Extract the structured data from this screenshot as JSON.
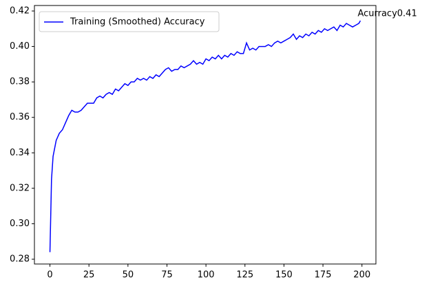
{
  "chart_data": {
    "type": "line",
    "x": [
      0,
      1,
      2,
      4,
      6,
      8,
      10,
      12,
      14,
      16,
      18,
      20,
      22,
      24,
      26,
      28,
      30,
      32,
      34,
      36,
      38,
      40,
      42,
      44,
      46,
      48,
      50,
      52,
      54,
      56,
      58,
      60,
      62,
      64,
      66,
      68,
      70,
      72,
      74,
      76,
      78,
      80,
      82,
      84,
      86,
      88,
      90,
      92,
      94,
      96,
      98,
      100,
      102,
      104,
      106,
      108,
      110,
      112,
      114,
      116,
      118,
      120,
      122,
      124,
      126,
      128,
      130,
      132,
      134,
      136,
      138,
      140,
      142,
      144,
      146,
      148,
      150,
      152,
      154,
      156,
      158,
      160,
      162,
      164,
      166,
      168,
      170,
      172,
      174,
      176,
      178,
      180,
      182,
      184,
      186,
      188,
      190,
      192,
      194,
      196,
      198,
      199
    ],
    "series": [
      {
        "name": "Training (Smoothed) Accuracy",
        "color": "#0000ff",
        "values": [
          0.284,
          0.325,
          0.338,
          0.347,
          0.351,
          0.353,
          0.357,
          0.361,
          0.364,
          0.363,
          0.363,
          0.364,
          0.366,
          0.368,
          0.368,
          0.368,
          0.371,
          0.372,
          0.371,
          0.373,
          0.374,
          0.373,
          0.376,
          0.375,
          0.377,
          0.379,
          0.378,
          0.38,
          0.38,
          0.382,
          0.381,
          0.382,
          0.381,
          0.383,
          0.382,
          0.384,
          0.383,
          0.385,
          0.387,
          0.388,
          0.386,
          0.387,
          0.387,
          0.389,
          0.388,
          0.389,
          0.39,
          0.392,
          0.39,
          0.391,
          0.39,
          0.393,
          0.392,
          0.394,
          0.393,
          0.395,
          0.393,
          0.395,
          0.394,
          0.396,
          0.395,
          0.397,
          0.396,
          0.396,
          0.402,
          0.398,
          0.399,
          0.398,
          0.4,
          0.4,
          0.4,
          0.401,
          0.4,
          0.402,
          0.403,
          0.402,
          0.403,
          0.404,
          0.405,
          0.407,
          0.404,
          0.406,
          0.405,
          0.407,
          0.406,
          0.408,
          0.407,
          0.409,
          0.408,
          0.41,
          0.409,
          0.41,
          0.411,
          0.409,
          0.412,
          0.411,
          0.413,
          0.412,
          0.411,
          0.412,
          0.413,
          0.4145
        ]
      }
    ],
    "annotation": "Acurracy0.41",
    "annotation_color": "#ff0000",
    "xlim": [
      -9.95,
      208.95
    ],
    "xticks": [
      0,
      25,
      50,
      75,
      100,
      125,
      150,
      175,
      200
    ],
    "ylim": [
      0.2773,
      0.4231
    ],
    "yticks": [
      0.28,
      {
        "value": 0.3,
        "label": "0.30"
      },
      0.32,
      0.34,
      0.36,
      0.38,
      {
        "value": 0.4,
        "label": "0.40"
      },
      0.42
    ],
    "legend": "upper left",
    "grid": false
  }
}
